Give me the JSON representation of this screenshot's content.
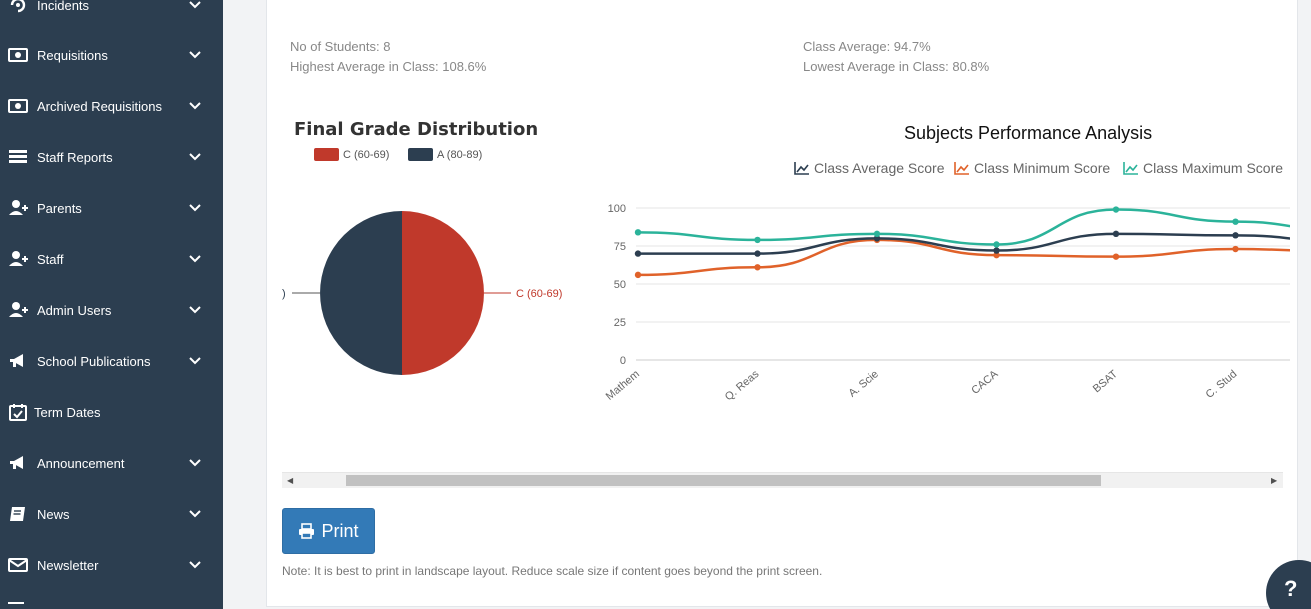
{
  "sidebar": {
    "items": [
      {
        "label": "Incidents",
        "icon": "incident-icon",
        "chevron": true
      },
      {
        "label": "Requisitions",
        "icon": "money-bill-icon",
        "chevron": true
      },
      {
        "label": "Archived Requisitions",
        "icon": "money-bill-icon",
        "chevron": true
      },
      {
        "label": "Staff Reports",
        "icon": "list-icon",
        "chevron": true
      },
      {
        "label": "Parents",
        "icon": "user-plus-icon",
        "chevron": true
      },
      {
        "label": "Staff",
        "icon": "user-plus-icon",
        "chevron": true
      },
      {
        "label": "Admin Users",
        "icon": "user-plus-icon",
        "chevron": true
      },
      {
        "label": "School Publications",
        "icon": "megaphone-icon",
        "chevron": true
      },
      {
        "label": "Term Dates",
        "icon": "calendar-check-icon",
        "chevron": false
      },
      {
        "label": "Announcement",
        "icon": "megaphone-icon",
        "chevron": true
      },
      {
        "label": "News",
        "icon": "book-icon",
        "chevron": true
      },
      {
        "label": "Newsletter",
        "icon": "envelope-icon",
        "chevron": true
      }
    ]
  },
  "stats": {
    "students": "No of Students: 8",
    "highest": "Highest Average in Class: 108.6%",
    "class_average": "Class Average: 94.7%",
    "lowest": "Lowest Average in Class: 80.8%"
  },
  "pie": {
    "title": "Final Grade Distribution",
    "legend": [
      {
        "label": "C (60-69)",
        "color": "#c0392b"
      },
      {
        "label": "A (80-89)",
        "color": "#2c3e50"
      }
    ],
    "slice_label_c": "C (60-69)",
    "slice_label_a_partial": ")"
  },
  "line": {
    "title": "Subjects Performance Analysis",
    "legend": [
      {
        "label": "Class Average Score",
        "color": "#2c3e50"
      },
      {
        "label": "Class Minimum Score",
        "color": "#e0622a"
      },
      {
        "label": "Class Maximum Score",
        "color": "#2bb39a"
      }
    ]
  },
  "chart_data": [
    {
      "type": "pie",
      "title": "Final Grade Distribution",
      "labels": [
        "C (60-69)",
        "A (80-89)"
      ],
      "values": [
        50,
        50
      ],
      "colors": [
        "#c0392b",
        "#2c3e50"
      ]
    },
    {
      "type": "line",
      "title": "Subjects Performance Analysis",
      "categories": [
        "Mathem",
        "Q. Reas",
        "A. Scie",
        "CACA",
        "BSAT",
        "C. Stud",
        ""
      ],
      "ylim": [
        0,
        100
      ],
      "yticks": [
        0,
        25,
        50,
        75,
        100
      ],
      "series": [
        {
          "name": "Class Average Score",
          "color": "#2c3e50",
          "values": [
            70,
            70,
            80,
            72,
            83,
            82,
            77
          ]
        },
        {
          "name": "Class Minimum Score",
          "color": "#e0622a",
          "values": [
            56,
            61,
            79,
            69,
            68,
            73,
            71
          ]
        },
        {
          "name": "Class Maximum Score",
          "color": "#2bb39a",
          "values": [
            84,
            79,
            83,
            76,
            99,
            91,
            84
          ]
        }
      ]
    }
  ],
  "print": {
    "label": "Print"
  },
  "note": "Note: It is best to print in landscape layout. Reduce scale size if content goes beyond the print screen.",
  "help": {
    "label": "?"
  }
}
